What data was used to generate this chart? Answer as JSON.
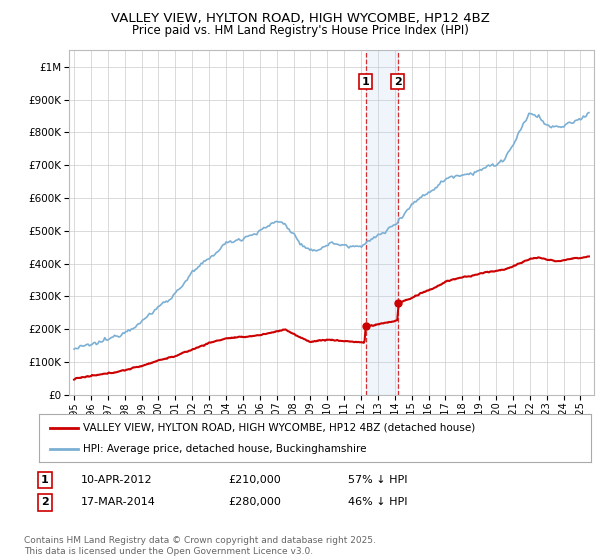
{
  "title": "VALLEY VIEW, HYLTON ROAD, HIGH WYCOMBE, HP12 4BZ",
  "subtitle": "Price paid vs. HM Land Registry's House Price Index (HPI)",
  "legend_label_red": "VALLEY VIEW, HYLTON ROAD, HIGH WYCOMBE, HP12 4BZ (detached house)",
  "legend_label_blue": "HPI: Average price, detached house, Buckinghamshire",
  "footnote": "Contains HM Land Registry data © Crown copyright and database right 2025.\nThis data is licensed under the Open Government Licence v3.0.",
  "sale1_date": "10-APR-2012",
  "sale1_price": 210000,
  "sale1_pct": "57% ↓ HPI",
  "sale2_date": "17-MAR-2014",
  "sale2_price": 280000,
  "sale2_pct": "46% ↓ HPI",
  "red_color": "#cc0000",
  "blue_color": "#7bafd4",
  "highlight_fill": "#ddeeff",
  "vline_color": "#cc0000",
  "background_color": "#ffffff",
  "grid_color": "#cccccc",
  "ylim": [
    0,
    1050000
  ],
  "xlim_start": 1994.7,
  "xlim_end": 2025.8,
  "sale1_x": 2012.27,
  "sale2_x": 2014.18
}
